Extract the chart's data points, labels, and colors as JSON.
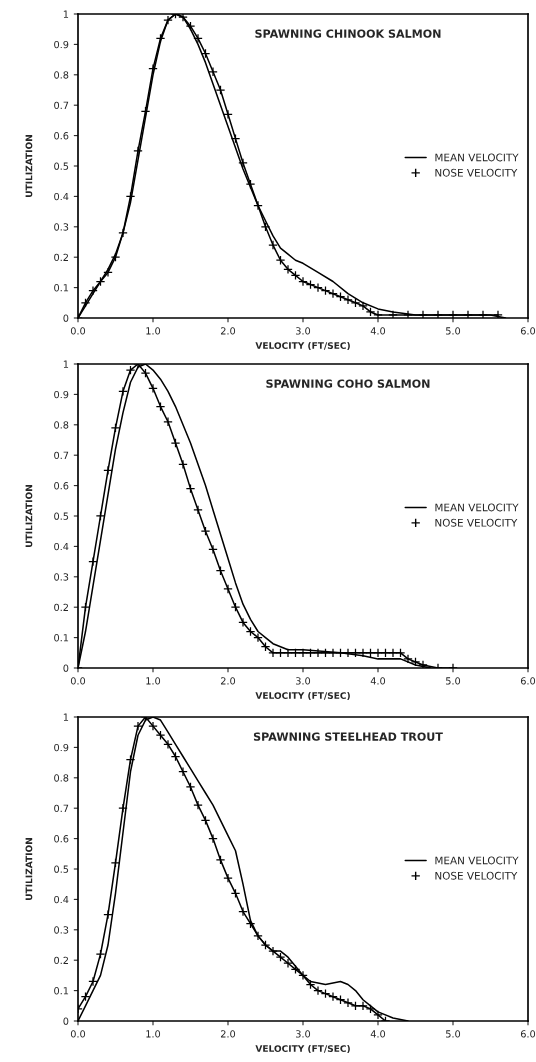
{
  "chart_data": [
    {
      "type": "line",
      "title": "SPAWNING CHINOOK SALMON",
      "xlabel": "VELOCITY (FT/SEC)",
      "ylabel": "UTILIZATION",
      "legend": "right",
      "grid": false,
      "xlim": [
        0,
        6
      ],
      "xticks": [
        {
          "value": 0,
          "label": "0.0"
        },
        {
          "value": 1,
          "label": "1.0"
        },
        {
          "value": 2,
          "label": "2.0"
        },
        {
          "value": 3,
          "label": "3.0"
        },
        {
          "value": 4,
          "label": "4.0"
        },
        {
          "value": 5,
          "label": "5.0"
        },
        {
          "value": 6,
          "label": "6.0"
        }
      ],
      "ylim": [
        0,
        1
      ],
      "yticks": [
        0,
        0.1,
        0.2,
        0.3,
        0.4,
        0.5,
        0.6,
        0.7,
        0.8,
        0.9,
        1
      ],
      "series": [
        {
          "name": "MEAN VELOCITY",
          "color": "#000000",
          "marker": "none",
          "x": [
            0,
            0.1,
            0.2,
            0.3,
            0.4,
            0.5,
            0.6,
            0.7,
            0.8,
            0.9,
            1.0,
            1.1,
            1.2,
            1.3,
            1.4,
            1.5,
            1.6,
            1.7,
            1.8,
            1.9,
            2.0,
            2.1,
            2.2,
            2.3,
            2.4,
            2.5,
            2.6,
            2.7,
            2.8,
            2.9,
            3.0,
            3.2,
            3.4,
            3.6,
            3.8,
            4.0,
            4.2,
            4.5,
            5.0,
            5.5,
            5.7
          ],
          "values": [
            0,
            0.04,
            0.08,
            0.12,
            0.16,
            0.21,
            0.28,
            0.38,
            0.52,
            0.66,
            0.8,
            0.91,
            0.98,
            1.0,
            0.99,
            0.95,
            0.9,
            0.84,
            0.77,
            0.7,
            0.63,
            0.56,
            0.49,
            0.43,
            0.37,
            0.32,
            0.27,
            0.23,
            0.21,
            0.19,
            0.18,
            0.15,
            0.12,
            0.08,
            0.05,
            0.03,
            0.02,
            0.01,
            0.01,
            0.01,
            0
          ]
        },
        {
          "name": "NOSE VELOCITY",
          "color": "#000000",
          "marker": "cross",
          "x": [
            0,
            0.1,
            0.2,
            0.3,
            0.4,
            0.5,
            0.6,
            0.7,
            0.8,
            0.9,
            1.0,
            1.1,
            1.2,
            1.3,
            1.4,
            1.5,
            1.6,
            1.7,
            1.8,
            1.9,
            2.0,
            2.1,
            2.2,
            2.3,
            2.4,
            2.5,
            2.6,
            2.7,
            2.8,
            2.9,
            3.0,
            3.1,
            3.2,
            3.3,
            3.4,
            3.5,
            3.6,
            3.7,
            3.8,
            3.9,
            4.0,
            4.2,
            4.4,
            4.6,
            4.8,
            5.0,
            5.2,
            5.4,
            5.6
          ],
          "values": [
            0,
            0.05,
            0.09,
            0.12,
            0.15,
            0.2,
            0.28,
            0.4,
            0.55,
            0.68,
            0.82,
            0.92,
            0.98,
            1.0,
            0.99,
            0.96,
            0.92,
            0.87,
            0.81,
            0.75,
            0.67,
            0.59,
            0.51,
            0.44,
            0.37,
            0.3,
            0.24,
            0.19,
            0.16,
            0.14,
            0.12,
            0.11,
            0.1,
            0.09,
            0.08,
            0.07,
            0.06,
            0.05,
            0.04,
            0.02,
            0.01,
            0.01,
            0.01,
            0.01,
            0.01,
            0.01,
            0.01,
            0.01,
            0.01
          ]
        }
      ]
    },
    {
      "type": "line",
      "title": "SPAWNING COHO SALMON",
      "xlabel": "VELOCITY (FT/SEC)",
      "ylabel": "UTILIZATION",
      "legend": "right",
      "grid": false,
      "xlim": [
        0,
        6
      ],
      "xticks": [
        {
          "value": 0,
          "label": "0.0"
        },
        {
          "value": 1,
          "label": "1.0"
        },
        {
          "value": 2,
          "label": "2.0"
        },
        {
          "value": 3,
          "label": "3.0"
        },
        {
          "value": 4,
          "label": "4.0"
        },
        {
          "value": 5,
          "label": "5.0"
        },
        {
          "value": 6,
          "label": "6.0"
        }
      ],
      "ylim": [
        0,
        1
      ],
      "yticks": [
        0,
        0.1,
        0.2,
        0.3,
        0.4,
        0.5,
        0.6,
        0.7,
        0.8,
        0.9,
        1
      ],
      "series": [
        {
          "name": "MEAN VELOCITY",
          "color": "#000000",
          "marker": "none",
          "x": [
            0,
            0.1,
            0.2,
            0.3,
            0.4,
            0.5,
            0.6,
            0.7,
            0.8,
            0.9,
            1.0,
            1.1,
            1.2,
            1.3,
            1.4,
            1.5,
            1.6,
            1.7,
            1.8,
            1.9,
            2.0,
            2.1,
            2.2,
            2.3,
            2.4,
            2.5,
            2.6,
            2.7,
            2.8,
            3.0,
            3.5,
            3.8,
            4.0,
            4.3,
            4.5,
            4.7
          ],
          "values": [
            0,
            0.12,
            0.27,
            0.42,
            0.57,
            0.72,
            0.84,
            0.94,
            0.99,
            1.0,
            0.98,
            0.95,
            0.91,
            0.86,
            0.8,
            0.74,
            0.67,
            0.6,
            0.52,
            0.44,
            0.36,
            0.28,
            0.21,
            0.16,
            0.12,
            0.1,
            0.08,
            0.07,
            0.06,
            0.06,
            0.05,
            0.04,
            0.03,
            0.03,
            0.01,
            0
          ]
        },
        {
          "name": "NOSE VELOCITY",
          "color": "#000000",
          "marker": "cross",
          "x": [
            0,
            0.1,
            0.2,
            0.3,
            0.4,
            0.5,
            0.6,
            0.7,
            0.8,
            0.9,
            1.0,
            1.1,
            1.2,
            1.3,
            1.4,
            1.5,
            1.6,
            1.7,
            1.8,
            1.9,
            2.0,
            2.1,
            2.2,
            2.3,
            2.4,
            2.5,
            2.6,
            2.7,
            2.8,
            2.9,
            3.0,
            3.1,
            3.2,
            3.3,
            3.4,
            3.5,
            3.6,
            3.7,
            3.8,
            3.9,
            4.0,
            4.1,
            4.2,
            4.3,
            4.4,
            4.5,
            4.6,
            4.8,
            5.0
          ],
          "values": [
            0,
            0.2,
            0.35,
            0.5,
            0.65,
            0.79,
            0.91,
            0.98,
            1.0,
            0.97,
            0.92,
            0.86,
            0.81,
            0.74,
            0.67,
            0.59,
            0.52,
            0.45,
            0.39,
            0.32,
            0.26,
            0.2,
            0.15,
            0.12,
            0.1,
            0.07,
            0.05,
            0.05,
            0.05,
            0.05,
            0.05,
            0.05,
            0.05,
            0.05,
            0.05,
            0.05,
            0.05,
            0.05,
            0.05,
            0.05,
            0.05,
            0.05,
            0.05,
            0.05,
            0.03,
            0.02,
            0.01,
            0,
            0
          ]
        }
      ]
    },
    {
      "type": "line",
      "title": "SPAWNING STEELHEAD TROUT",
      "xlabel": "VELOCITY (FT/SEC)",
      "ylabel": "UTILIZATION",
      "legend": "right",
      "grid": false,
      "xlim": [
        0,
        6
      ],
      "xticks": [
        {
          "value": 0,
          "label": "0.0"
        },
        {
          "value": 1,
          "label": "1.0"
        },
        {
          "value": 2,
          "label": "2.0"
        },
        {
          "value": 3,
          "label": "3.0"
        },
        {
          "value": 4,
          "label": "4.0"
        },
        {
          "value": 5,
          "label": "5.0"
        },
        {
          "value": 6,
          "label": "6.0"
        }
      ],
      "ylim": [
        0,
        1
      ],
      "yticks": [
        0,
        0.1,
        0.2,
        0.3,
        0.4,
        0.5,
        0.6,
        0.7,
        0.8,
        0.9,
        1
      ],
      "series": [
        {
          "name": "MEAN VELOCITY",
          "color": "#000000",
          "marker": "none",
          "x": [
            0,
            0.1,
            0.2,
            0.3,
            0.4,
            0.5,
            0.6,
            0.7,
            0.8,
            0.9,
            1.0,
            1.1,
            1.2,
            1.3,
            1.4,
            1.5,
            1.6,
            1.7,
            1.8,
            1.9,
            2.0,
            2.1,
            2.2,
            2.3,
            2.4,
            2.5,
            2.6,
            2.7,
            2.8,
            2.9,
            3.0,
            3.1,
            3.3,
            3.5,
            3.6,
            3.7,
            3.8,
            3.9,
            4.0,
            4.2,
            4.4
          ],
          "values": [
            0,
            0.05,
            0.1,
            0.15,
            0.25,
            0.42,
            0.62,
            0.82,
            0.94,
            0.99,
            1.0,
            0.99,
            0.95,
            0.91,
            0.87,
            0.83,
            0.79,
            0.75,
            0.71,
            0.66,
            0.61,
            0.56,
            0.45,
            0.33,
            0.28,
            0.25,
            0.23,
            0.23,
            0.21,
            0.18,
            0.15,
            0.13,
            0.12,
            0.13,
            0.12,
            0.1,
            0.07,
            0.05,
            0.03,
            0.01,
            0
          ]
        },
        {
          "name": "NOSE VELOCITY",
          "color": "#000000",
          "marker": "cross",
          "x": [
            0,
            0.1,
            0.2,
            0.3,
            0.4,
            0.5,
            0.6,
            0.7,
            0.8,
            0.9,
            1.0,
            1.1,
            1.2,
            1.3,
            1.4,
            1.5,
            1.6,
            1.7,
            1.8,
            1.9,
            2.0,
            2.1,
            2.2,
            2.3,
            2.4,
            2.5,
            2.6,
            2.7,
            2.8,
            2.9,
            3.0,
            3.1,
            3.2,
            3.3,
            3.4,
            3.5,
            3.6,
            3.7,
            3.8,
            3.9,
            4.0,
            4.1
          ],
          "values": [
            0.04,
            0.08,
            0.13,
            0.22,
            0.35,
            0.52,
            0.7,
            0.86,
            0.97,
            1.0,
            0.97,
            0.94,
            0.91,
            0.87,
            0.82,
            0.77,
            0.71,
            0.66,
            0.6,
            0.53,
            0.47,
            0.42,
            0.36,
            0.32,
            0.28,
            0.25,
            0.23,
            0.21,
            0.19,
            0.17,
            0.15,
            0.12,
            0.1,
            0.09,
            0.08,
            0.07,
            0.06,
            0.05,
            0.05,
            0.04,
            0.02,
            0
          ]
        }
      ]
    }
  ]
}
